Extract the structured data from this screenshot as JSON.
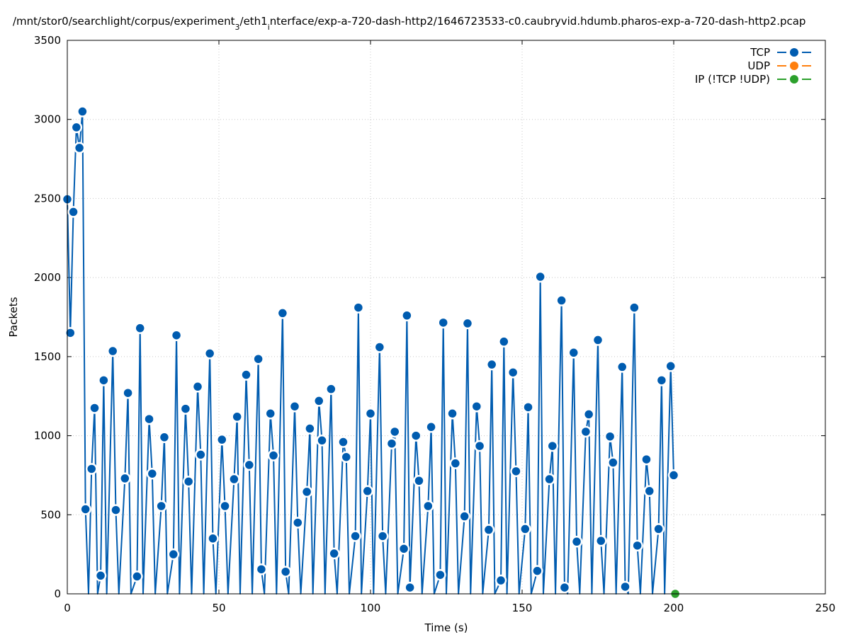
{
  "chart_data": {
    "type": "line",
    "title": "/mnt/stor0/searchlight/corpus/experiment",
    "title_sub": "3",
    "title_mid": "/eth1",
    "title_sub2": "i",
    "title_end": "nterface/exp-a-720-dash-http2/1646723533-c0.caubryvid.hdumb.pharos-exp-a-720-dash-http2.pcap",
    "xlabel": "Time (s)",
    "ylabel": "Packets",
    "xlim": [
      0,
      250
    ],
    "ylim": [
      0,
      3500
    ],
    "xticks": [
      0,
      50,
      100,
      150,
      200,
      250
    ],
    "yticks": [
      0,
      500,
      1000,
      1500,
      2000,
      2500,
      3000,
      3500
    ],
    "grid": true,
    "legend_position": "top-right",
    "series": [
      {
        "name": "TCP",
        "color": "#005cb0",
        "points": [
          [
            0,
            2495
          ],
          [
            1,
            1650
          ],
          [
            2,
            2415
          ],
          [
            3,
            2950
          ],
          [
            4,
            2820
          ],
          [
            5,
            3050
          ],
          [
            6,
            535
          ],
          [
            7,
            0
          ],
          [
            8,
            790
          ],
          [
            9,
            1175
          ],
          [
            10,
            0
          ],
          [
            11,
            115
          ],
          [
            12,
            1350
          ],
          [
            13,
            0
          ],
          [
            15,
            1535
          ],
          [
            16,
            530
          ],
          [
            17,
            0
          ],
          [
            19,
            730
          ],
          [
            20,
            1270
          ],
          [
            21,
            0
          ],
          [
            23,
            110
          ],
          [
            24,
            1680
          ],
          [
            25,
            0
          ],
          [
            27,
            1105
          ],
          [
            28,
            760
          ],
          [
            29,
            0
          ],
          [
            31,
            555
          ],
          [
            32,
            990
          ],
          [
            33,
            0
          ],
          [
            35,
            250
          ],
          [
            36,
            1635
          ],
          [
            37,
            0
          ],
          [
            39,
            1170
          ],
          [
            40,
            710
          ],
          [
            41,
            0
          ],
          [
            43,
            1310
          ],
          [
            44,
            880
          ],
          [
            45,
            0
          ],
          [
            47,
            1520
          ],
          [
            48,
            350
          ],
          [
            49,
            0
          ],
          [
            51,
            975
          ],
          [
            52,
            555
          ],
          [
            53,
            0
          ],
          [
            55,
            725
          ],
          [
            56,
            1120
          ],
          [
            57,
            0
          ],
          [
            59,
            1385
          ],
          [
            60,
            815
          ],
          [
            61,
            0
          ],
          [
            63,
            1485
          ],
          [
            64,
            155
          ],
          [
            65,
            0
          ],
          [
            67,
            1140
          ],
          [
            68,
            875
          ],
          [
            69,
            0
          ],
          [
            71,
            1775
          ],
          [
            72,
            140
          ],
          [
            73,
            0
          ],
          [
            75,
            1185
          ],
          [
            76,
            450
          ],
          [
            77,
            0
          ],
          [
            79,
            645
          ],
          [
            80,
            1045
          ],
          [
            81,
            0
          ],
          [
            83,
            1220
          ],
          [
            84,
            970
          ],
          [
            85,
            0
          ],
          [
            87,
            1295
          ],
          [
            88,
            255
          ],
          [
            89,
            0
          ],
          [
            91,
            960
          ],
          [
            92,
            865
          ],
          [
            93,
            0
          ],
          [
            95,
            365
          ],
          [
            96,
            1810
          ],
          [
            97,
            0
          ],
          [
            99,
            650
          ],
          [
            100,
            1140
          ],
          [
            101,
            0
          ],
          [
            103,
            1560
          ],
          [
            104,
            365
          ],
          [
            105,
            0
          ],
          [
            107,
            950
          ],
          [
            108,
            1025
          ],
          [
            109,
            0
          ],
          [
            111,
            285
          ],
          [
            112,
            1760
          ],
          [
            113,
            40
          ],
          [
            115,
            1000
          ],
          [
            116,
            715
          ],
          [
            117,
            0
          ],
          [
            119,
            555
          ],
          [
            120,
            1055
          ],
          [
            121,
            0
          ],
          [
            123,
            120
          ],
          [
            124,
            1715
          ],
          [
            125,
            0
          ],
          [
            127,
            1140
          ],
          [
            128,
            825
          ],
          [
            129,
            0
          ],
          [
            131,
            490
          ],
          [
            132,
            1710
          ],
          [
            133,
            0
          ],
          [
            135,
            1185
          ],
          [
            136,
            935
          ],
          [
            137,
            0
          ],
          [
            139,
            405
          ],
          [
            140,
            1450
          ],
          [
            141,
            0
          ],
          [
            143,
            85
          ],
          [
            144,
            1595
          ],
          [
            145,
            0
          ],
          [
            147,
            1400
          ],
          [
            148,
            775
          ],
          [
            149,
            0
          ],
          [
            151,
            410
          ],
          [
            152,
            1180
          ],
          [
            153,
            0
          ],
          [
            155,
            145
          ],
          [
            156,
            2005
          ],
          [
            157,
            0
          ],
          [
            159,
            725
          ],
          [
            160,
            935
          ],
          [
            161,
            0
          ],
          [
            163,
            1855
          ],
          [
            164,
            40
          ],
          [
            165,
            0
          ],
          [
            167,
            1525
          ],
          [
            168,
            330
          ],
          [
            169,
            0
          ],
          [
            171,
            1025
          ],
          [
            172,
            1135
          ],
          [
            173,
            0
          ],
          [
            175,
            1605
          ],
          [
            176,
            335
          ],
          [
            177,
            0
          ],
          [
            179,
            995
          ],
          [
            180,
            830
          ],
          [
            181,
            0
          ],
          [
            183,
            1435
          ],
          [
            184,
            45
          ],
          [
            185,
            0
          ],
          [
            187,
            1810
          ],
          [
            188,
            305
          ],
          [
            189,
            0
          ],
          [
            191,
            850
          ],
          [
            192,
            650
          ],
          [
            193,
            0
          ],
          [
            195,
            410
          ],
          [
            196,
            1350
          ],
          [
            197,
            0
          ],
          [
            199,
            1440
          ],
          [
            200,
            750
          ]
        ]
      },
      {
        "name": "UDP",
        "color": "#ff7f0e",
        "points": []
      },
      {
        "name": "IP (!TCP  !UDP)",
        "color": "#2ca02c",
        "points": [
          [
            200.5,
            0
          ]
        ]
      }
    ]
  }
}
